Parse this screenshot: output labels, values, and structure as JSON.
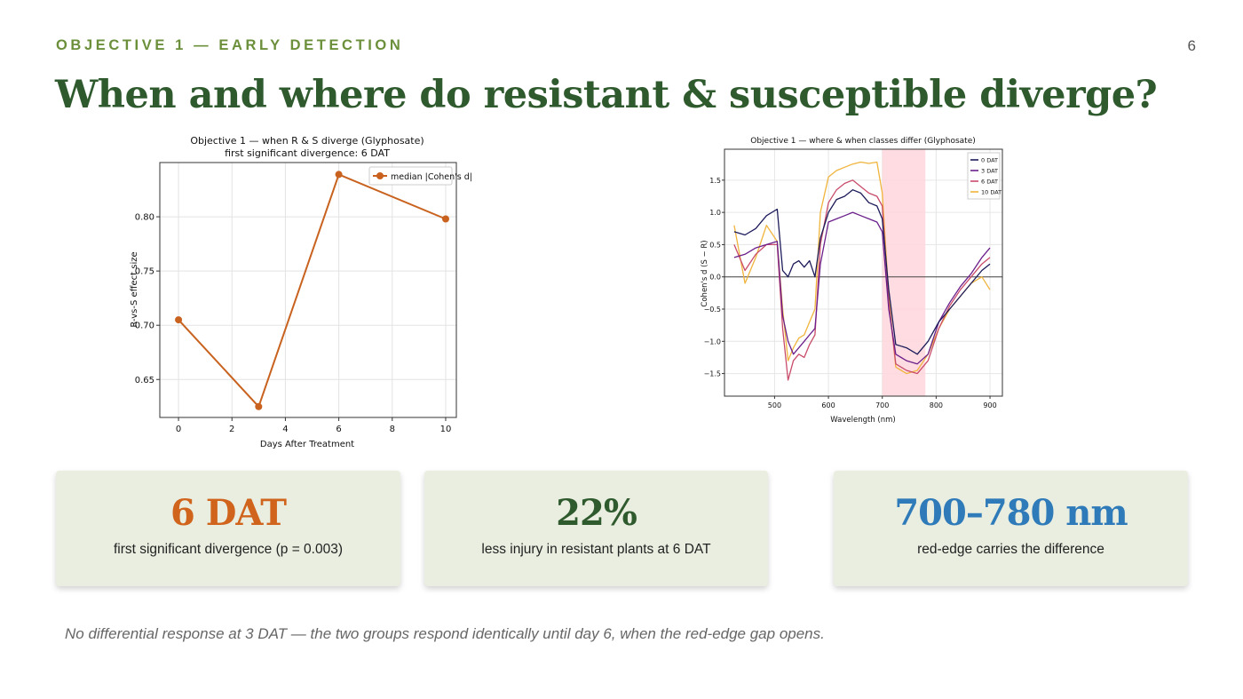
{
  "header": {
    "kicker": "OBJECTIVE 1 — EARLY DETECTION",
    "page_number": "6",
    "title": "When and where do resistant & susceptible diverge?"
  },
  "colors": {
    "kicker": "#6b8f3a",
    "title": "#2f5a2d",
    "card_bg": "#e9eee0",
    "orange": "#d0641c",
    "green": "#2f5a2d",
    "blue": "#2f7ab8"
  },
  "cards": [
    {
      "value": "6 DAT",
      "label": "first significant divergence (p = 0.003)",
      "color": "#d0641c"
    },
    {
      "value": "22%",
      "label": "less injury in resistant plants at 6 DAT",
      "color": "#2f5a2d"
    },
    {
      "value": "700–780 nm",
      "label": "red-edge carries the difference",
      "color": "#2f7ab8"
    }
  ],
  "footnote": "No differential response at 3 DAT — the two groups respond identically until day 6, when the red-edge gap opens.",
  "chart_data": [
    {
      "type": "line",
      "title": "Objective 1 — when R & S diverge (Glyphosate)",
      "subtitle": "first significant divergence: 6 DAT",
      "xlabel": "Days After Treatment",
      "ylabel": "R-vs-S effect size",
      "xlim": [
        -0.7,
        10.4
      ],
      "ylim": [
        0.615,
        0.85
      ],
      "xticks": [
        0,
        2,
        4,
        6,
        8,
        10
      ],
      "yticks": [
        0.65,
        0.7,
        0.75,
        0.8
      ],
      "ytick_labels": [
        "0.65",
        "0.70",
        "0.75",
        "0.80"
      ],
      "grid": true,
      "legend_position": "top-right",
      "series": [
        {
          "name": "median |Cohen's d|",
          "color": "#c8621e",
          "x": [
            0,
            3,
            6,
            10
          ],
          "y": [
            0.705,
            0.625,
            0.839,
            0.798
          ]
        }
      ]
    },
    {
      "type": "line",
      "title": "Objective 1 — where & when classes differ (Glyphosate)",
      "xlabel": "Wavelength (nm)",
      "ylabel": "Cohen's d (S − R)",
      "xlim": [
        407,
        923
      ],
      "ylim": [
        -1.85,
        1.98
      ],
      "xticks": [
        500,
        600,
        700,
        800,
        900
      ],
      "yticks": [
        -1.5,
        -1.0,
        -0.5,
        0.0,
        0.5,
        1.0,
        1.5
      ],
      "ytick_labels": [
        "−1.5",
        "−1.0",
        "−0.5",
        "0.0",
        "0.5",
        "1.0",
        "1.5"
      ],
      "grid": true,
      "legend_position": "top-right",
      "shaded_band": {
        "x_from": 700,
        "x_to": 780,
        "color": "#ffd6dc"
      },
      "zero_line": true,
      "series": [
        {
          "name": "0 DAT",
          "color": "#1c1b5a",
          "x": [
            425,
            445,
            465,
            485,
            505,
            515,
            525,
            535,
            545,
            555,
            565,
            575,
            585,
            600,
            615,
            630,
            645,
            660,
            675,
            690,
            700,
            712,
            725,
            745,
            765,
            785,
            805,
            825,
            845,
            865,
            885,
            900
          ],
          "y": [
            0.7,
            0.65,
            0.75,
            0.95,
            1.05,
            0.1,
            0.0,
            0.2,
            0.25,
            0.15,
            0.25,
            0.0,
            0.6,
            1.0,
            1.2,
            1.25,
            1.35,
            1.3,
            1.15,
            1.1,
            0.9,
            -0.2,
            -1.05,
            -1.1,
            -1.2,
            -1.0,
            -0.7,
            -0.5,
            -0.3,
            -0.1,
            0.1,
            0.2
          ]
        },
        {
          "name": "3 DAT",
          "color": "#6b1f8a",
          "x": [
            425,
            445,
            465,
            485,
            505,
            515,
            525,
            535,
            545,
            555,
            565,
            575,
            585,
            600,
            615,
            630,
            645,
            660,
            675,
            690,
            700,
            712,
            725,
            745,
            765,
            785,
            805,
            825,
            845,
            865,
            885,
            900
          ],
          "y": [
            0.3,
            0.35,
            0.45,
            0.5,
            0.55,
            -0.6,
            -1.0,
            -1.2,
            -1.1,
            -1.0,
            -0.9,
            -0.8,
            0.2,
            0.85,
            0.9,
            0.95,
            1.0,
            0.95,
            0.9,
            0.85,
            0.7,
            -0.5,
            -1.2,
            -1.3,
            -1.35,
            -1.2,
            -0.7,
            -0.4,
            -0.15,
            0.05,
            0.3,
            0.45
          ]
        },
        {
          "name": "6 DAT",
          "color": "#c84c6a",
          "x": [
            425,
            445,
            465,
            485,
            505,
            515,
            525,
            535,
            545,
            555,
            565,
            575,
            585,
            600,
            615,
            630,
            645,
            660,
            675,
            690,
            700,
            712,
            725,
            745,
            765,
            785,
            805,
            825,
            845,
            865,
            885,
            900
          ],
          "y": [
            0.5,
            0.1,
            0.35,
            0.5,
            0.5,
            -0.8,
            -1.6,
            -1.3,
            -1.2,
            -1.25,
            -1.05,
            -0.9,
            0.5,
            1.15,
            1.35,
            1.45,
            1.5,
            1.4,
            1.3,
            1.25,
            1.1,
            -0.4,
            -1.35,
            -1.45,
            -1.5,
            -1.3,
            -0.8,
            -0.45,
            -0.2,
            0.0,
            0.2,
            0.3
          ]
        },
        {
          "name": "10 DAT",
          "color": "#f0b43c",
          "x": [
            425,
            445,
            465,
            485,
            505,
            515,
            525,
            535,
            545,
            555,
            565,
            575,
            585,
            600,
            615,
            630,
            645,
            660,
            675,
            690,
            700,
            712,
            725,
            745,
            765,
            785,
            805,
            825,
            845,
            865,
            885,
            900
          ],
          "y": [
            0.8,
            -0.1,
            0.3,
            0.8,
            0.55,
            -0.5,
            -1.3,
            -1.1,
            -0.95,
            -0.9,
            -0.7,
            -0.5,
            1.0,
            1.55,
            1.65,
            1.7,
            1.75,
            1.78,
            1.76,
            1.78,
            1.3,
            -0.3,
            -1.4,
            -1.5,
            -1.45,
            -1.2,
            -0.8,
            -0.5,
            -0.3,
            -0.1,
            0.0,
            -0.2
          ]
        }
      ]
    }
  ]
}
